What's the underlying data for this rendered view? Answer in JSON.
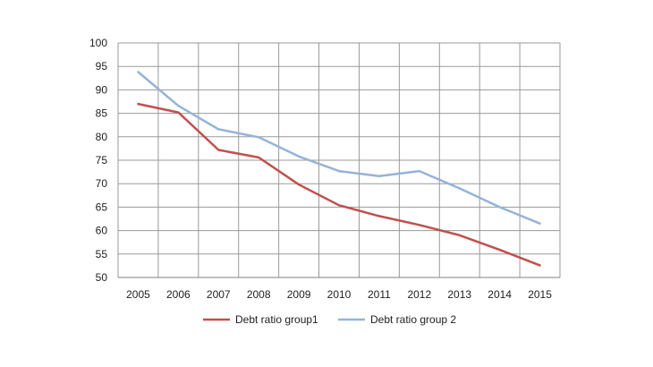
{
  "chart_data": {
    "type": "line",
    "title": "",
    "xlabel": "",
    "ylabel": "",
    "x": [
      "2005",
      "2006",
      "2007",
      "2008",
      "2009",
      "2010",
      "2011",
      "2012",
      "2013",
      "2014",
      "2015"
    ],
    "ylim": [
      50,
      100
    ],
    "yticks": [
      50,
      55,
      60,
      65,
      70,
      75,
      80,
      85,
      90,
      95,
      100
    ],
    "grid": true,
    "legend_position": "bottom",
    "series": [
      {
        "name": "Debt ratio group1",
        "color": "#C0504D",
        "values": [
          87,
          85.2,
          77.2,
          75.6,
          69.8,
          65.4,
          63.1,
          61.2,
          59.0,
          55.9,
          52.6
        ]
      },
      {
        "name": "Debt ratio group 2",
        "color": "#95B3D7",
        "values": [
          93.8,
          86.6,
          81.6,
          79.9,
          75.8,
          72.7,
          71.6,
          72.7,
          69.0,
          65.0,
          61.5
        ]
      }
    ]
  }
}
